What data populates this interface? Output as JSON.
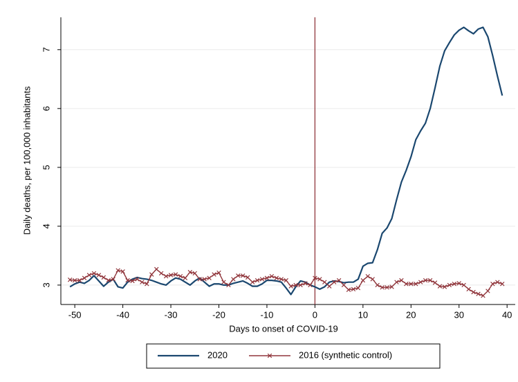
{
  "chart_data": {
    "type": "line",
    "x_label": "Days to onset of COVID-19",
    "y_label": "Daily deaths, per 100,000 inhabitants",
    "x": [
      -51,
      -50,
      -49,
      -48,
      -47,
      -46,
      -45,
      -44,
      -43,
      -42,
      -41,
      -40,
      -39,
      -38,
      -37,
      -36,
      -35,
      -34,
      -33,
      -32,
      -31,
      -30,
      -29,
      -28,
      -27,
      -26,
      -25,
      -24,
      -23,
      -22,
      -21,
      -20,
      -19,
      -18,
      -17,
      -16,
      -15,
      -14,
      -13,
      -12,
      -11,
      -10,
      -9,
      -8,
      -7,
      -6,
      -5,
      -4,
      -3,
      -2,
      -1,
      0,
      1,
      2,
      3,
      4,
      5,
      6,
      7,
      8,
      9,
      10,
      11,
      12,
      13,
      14,
      15,
      16,
      17,
      18,
      19,
      20,
      21,
      22,
      23,
      24,
      25,
      26,
      27,
      28,
      29,
      30,
      31,
      32,
      33,
      34,
      35,
      36,
      37,
      38,
      39
    ],
    "series": [
      {
        "name": "2020",
        "color": "#1a476f",
        "marker": "none",
        "values": [
          2.97,
          3.02,
          3.05,
          3.03,
          3.08,
          3.16,
          3.07,
          2.98,
          3.05,
          3.1,
          2.97,
          2.95,
          3.05,
          3.1,
          3.13,
          3.11,
          3.1,
          3.08,
          3.05,
          3.02,
          3.0,
          3.07,
          3.12,
          3.1,
          3.05,
          3.0,
          3.07,
          3.12,
          3.05,
          2.98,
          3.02,
          3.02,
          3.0,
          3.0,
          3.03,
          3.05,
          3.07,
          3.03,
          2.98,
          2.98,
          3.02,
          3.08,
          3.08,
          3.07,
          3.05,
          2.95,
          2.84,
          2.97,
          3.07,
          3.05,
          3.0,
          2.97,
          2.93,
          2.97,
          3.05,
          3.07,
          3.06,
          3.04,
          3.05,
          3.05,
          3.1,
          3.32,
          3.37,
          3.38,
          3.6,
          3.88,
          3.97,
          4.13,
          4.45,
          4.75,
          4.95,
          5.18,
          5.47,
          5.62,
          5.75,
          6.0,
          6.35,
          6.72,
          6.98,
          7.12,
          7.25,
          7.33,
          7.38,
          7.32,
          7.27,
          7.35,
          7.38,
          7.22,
          6.9,
          6.55,
          6.22
        ]
      },
      {
        "name": "2016 (synthetic control)",
        "color": "#90353b",
        "marker": "x",
        "values": [
          3.09,
          3.08,
          3.08,
          3.12,
          3.17,
          3.2,
          3.17,
          3.13,
          3.08,
          3.1,
          3.25,
          3.23,
          3.08,
          3.07,
          3.1,
          3.05,
          3.02,
          3.18,
          3.27,
          3.2,
          3.15,
          3.17,
          3.18,
          3.15,
          3.12,
          3.22,
          3.2,
          3.1,
          3.1,
          3.12,
          3.18,
          3.21,
          3.05,
          3.0,
          3.1,
          3.16,
          3.16,
          3.13,
          3.05,
          3.08,
          3.1,
          3.12,
          3.15,
          3.12,
          3.1,
          3.08,
          2.98,
          3.0,
          3.0,
          3.03,
          3.0,
          3.12,
          3.1,
          3.05,
          2.98,
          3.05,
          3.08,
          3.0,
          2.92,
          2.93,
          2.95,
          3.08,
          3.15,
          3.1,
          3.0,
          2.96,
          2.96,
          2.97,
          3.05,
          3.08,
          3.02,
          3.02,
          3.02,
          3.05,
          3.08,
          3.08,
          3.04,
          2.98,
          2.97,
          3.0,
          3.02,
          3.03,
          3.0,
          2.93,
          2.88,
          2.85,
          2.82,
          2.9,
          3.02,
          3.05,
          3.02
        ]
      }
    ],
    "xlim": [
      -52.9,
      41.7
    ],
    "ylim": [
      2.67,
      7.55
    ],
    "xticks": [
      -50,
      -40,
      -30,
      -20,
      -10,
      0,
      10,
      20,
      30,
      40
    ],
    "yticks": [
      3,
      4,
      5,
      6,
      7
    ],
    "vline": {
      "x": 0,
      "color": "#90353b"
    },
    "grid": true,
    "legend": "bottom"
  }
}
